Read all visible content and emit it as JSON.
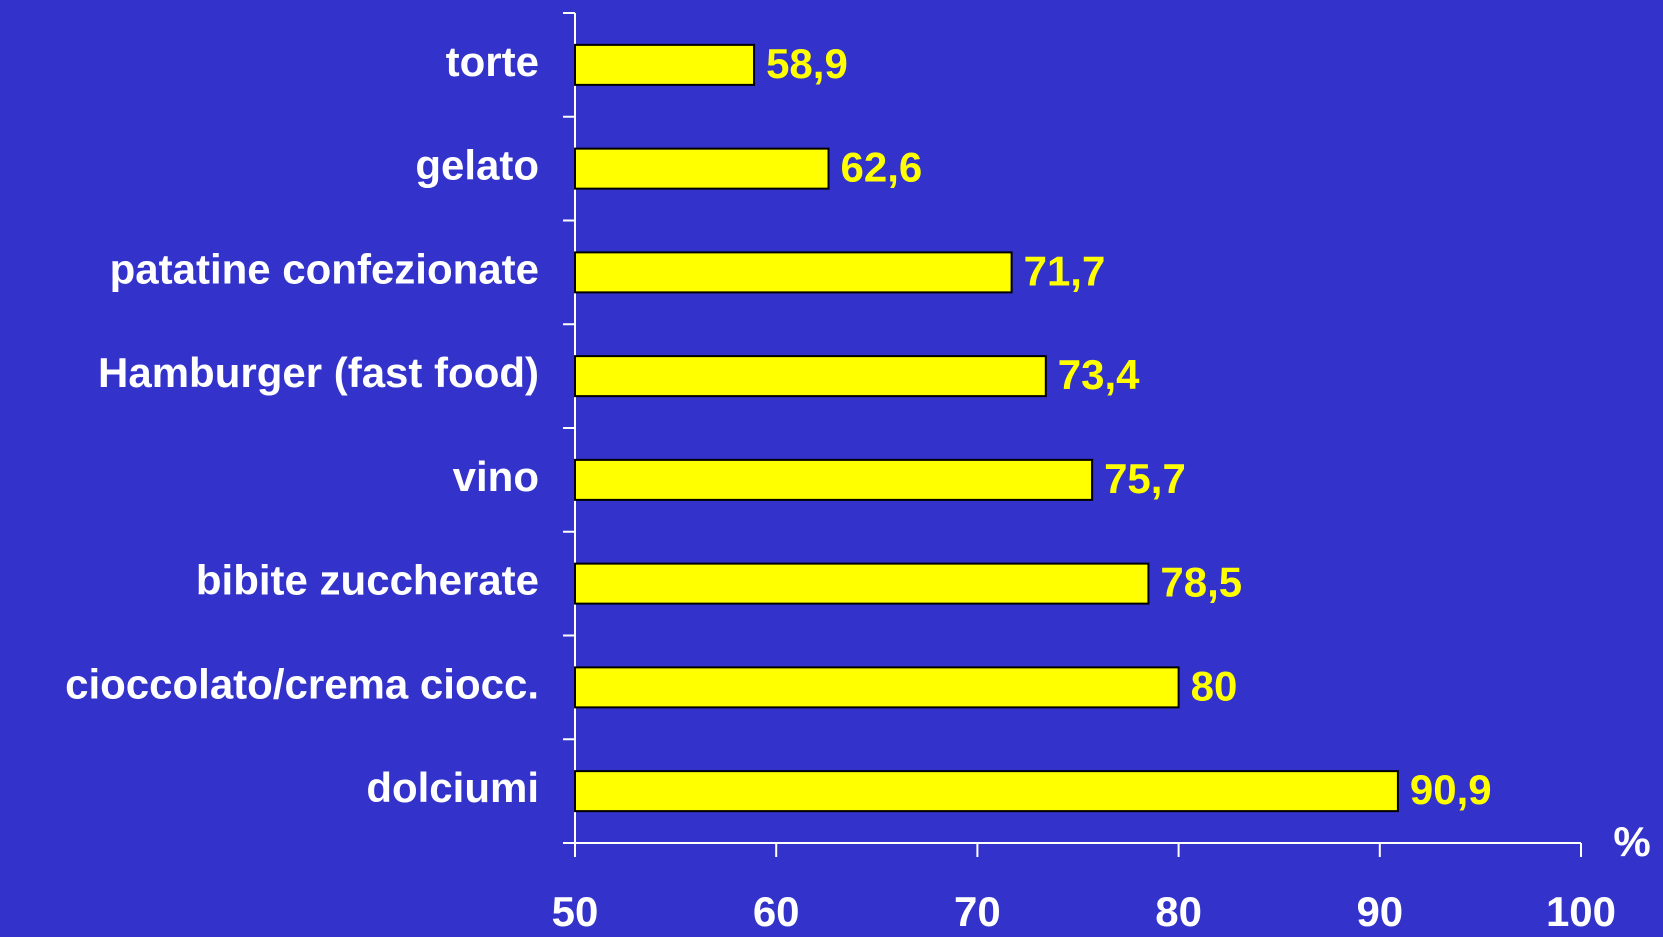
{
  "chart_data": {
    "type": "barh",
    "categories": [
      "torte",
      "gelato",
      "patatine confezionate",
      "Hamburger (fast food)",
      "vino",
      "bibite zuccherate",
      "cioccolato/crema ciocc.",
      "dolciumi"
    ],
    "values": [
      58.9,
      62.6,
      71.7,
      73.4,
      75.7,
      78.5,
      80,
      90.9
    ],
    "value_labels": [
      "58,9",
      "62,6",
      "71,7",
      "73,4",
      "75,7",
      "78,5",
      "80",
      "90,9"
    ],
    "color": "#ffff00",
    "xlabel": "%",
    "xlim": [
      50,
      100
    ],
    "xticks": [
      50,
      60,
      70,
      80,
      90,
      100
    ],
    "grid": false
  }
}
